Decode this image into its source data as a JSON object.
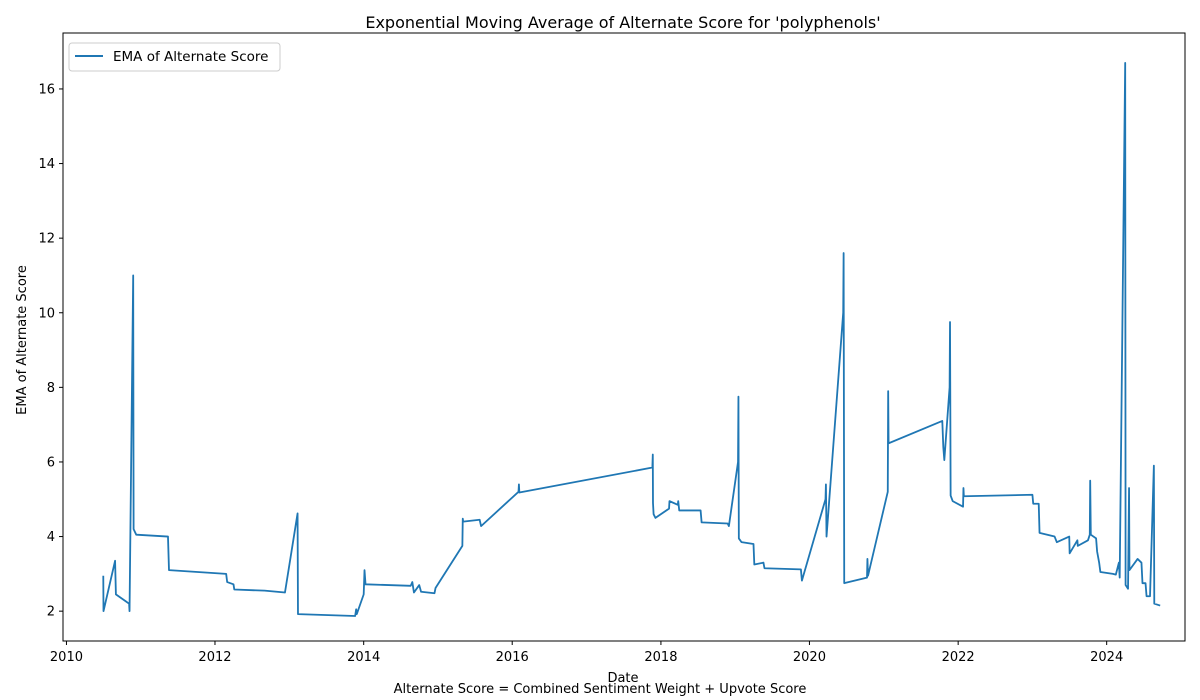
{
  "chart_data": {
    "type": "line",
    "title": "Exponential Moving Average of Alternate Score for 'polyphenols'",
    "xlabel": "Date",
    "ylabel": "EMA of Alternate Score",
    "caption": "Alternate Score = Combined Sentiment Weight + Upvote Score",
    "xlim": [
      "2009-12-15",
      "2025-01-20"
    ],
    "ylim": [
      1.2,
      17.5
    ],
    "x_ticks": [
      "2010",
      "2012",
      "2014",
      "2016",
      "2018",
      "2020",
      "2022",
      "2024"
    ],
    "y_ticks": [
      2,
      4,
      6,
      8,
      10,
      12,
      14,
      16
    ],
    "grid": false,
    "legend_position": "top-left",
    "color": "#1f77b4",
    "series": [
      {
        "name": "EMA of Alternate Score",
        "points": [
          [
            "2010-07-01",
            2.95
          ],
          [
            "2010-07-02",
            2.0
          ],
          [
            "2010-08-28",
            3.35
          ],
          [
            "2010-09-01",
            2.45
          ],
          [
            "2010-11-05",
            2.2
          ],
          [
            "2010-11-07",
            2.0
          ],
          [
            "2010-11-25",
            11.0
          ],
          [
            "2010-11-27",
            4.2
          ],
          [
            "2010-12-10",
            4.05
          ],
          [
            "2011-05-15",
            4.0
          ],
          [
            "2011-05-20",
            3.1
          ],
          [
            "2012-02-25",
            3.0
          ],
          [
            "2012-03-01",
            2.78
          ],
          [
            "2012-04-01",
            2.72
          ],
          [
            "2012-04-05",
            2.58
          ],
          [
            "2012-09-01",
            2.55
          ],
          [
            "2012-12-10",
            2.5
          ],
          [
            "2013-02-10",
            4.62
          ],
          [
            "2013-02-12",
            1.92
          ],
          [
            "2013-11-20",
            1.87
          ],
          [
            "2013-11-25",
            2.05
          ],
          [
            "2013-11-28",
            1.92
          ],
          [
            "2014-01-01",
            2.45
          ],
          [
            "2014-01-05",
            3.1
          ],
          [
            "2014-01-10",
            2.72
          ],
          [
            "2014-08-20",
            2.68
          ],
          [
            "2014-08-28",
            2.78
          ],
          [
            "2014-09-05",
            2.5
          ],
          [
            "2014-10-01",
            2.7
          ],
          [
            "2014-10-10",
            2.52
          ],
          [
            "2014-12-15",
            2.48
          ],
          [
            "2014-12-20",
            2.62
          ],
          [
            "2015-05-01",
            3.75
          ],
          [
            "2015-05-03",
            4.48
          ],
          [
            "2015-05-05",
            4.4
          ],
          [
            "2015-07-25",
            4.45
          ],
          [
            "2015-08-01",
            4.28
          ],
          [
            "2016-02-01",
            5.2
          ],
          [
            "2016-02-03",
            5.4
          ],
          [
            "2016-02-05",
            5.18
          ],
          [
            "2017-11-20",
            5.85
          ],
          [
            "2017-11-22",
            6.2
          ],
          [
            "2017-11-23",
            4.9
          ],
          [
            "2017-11-26",
            4.6
          ],
          [
            "2017-12-05",
            4.5
          ],
          [
            "2018-02-10",
            4.75
          ],
          [
            "2018-02-12",
            4.95
          ],
          [
            "2018-03-25",
            4.85
          ],
          [
            "2018-03-27",
            4.95
          ],
          [
            "2018-04-01",
            4.7
          ],
          [
            "2018-07-15",
            4.7
          ],
          [
            "2018-07-20",
            4.38
          ],
          [
            "2018-11-25",
            4.35
          ],
          [
            "2018-12-01",
            4.28
          ],
          [
            "2019-01-15",
            6.0
          ],
          [
            "2019-01-17",
            7.75
          ],
          [
            "2019-01-19",
            3.95
          ],
          [
            "2019-02-01",
            3.85
          ],
          [
            "2019-04-01",
            3.8
          ],
          [
            "2019-04-05",
            3.25
          ],
          [
            "2019-05-20",
            3.3
          ],
          [
            "2019-05-25",
            3.15
          ],
          [
            "2019-11-20",
            3.12
          ],
          [
            "2019-11-25",
            2.82
          ],
          [
            "2020-03-20",
            5.0
          ],
          [
            "2020-03-22",
            5.4
          ],
          [
            "2020-03-25",
            4.0
          ],
          [
            "2020-06-15",
            10.0
          ],
          [
            "2020-06-17",
            11.6
          ],
          [
            "2020-06-20",
            2.75
          ],
          [
            "2020-10-10",
            2.9
          ],
          [
            "2020-10-12",
            3.4
          ],
          [
            "2020-10-15",
            2.95
          ],
          [
            "2021-01-20",
            5.2
          ],
          [
            "2021-01-22",
            7.9
          ],
          [
            "2021-01-24",
            6.5
          ],
          [
            "2021-10-15",
            7.1
          ],
          [
            "2021-10-20",
            6.4
          ],
          [
            "2021-10-25",
            6.05
          ],
          [
            "2021-11-20",
            8.0
          ],
          [
            "2021-11-22",
            9.75
          ],
          [
            "2021-11-25",
            5.1
          ],
          [
            "2021-12-05",
            4.95
          ],
          [
            "2022-01-25",
            4.8
          ],
          [
            "2022-01-27",
            5.3
          ],
          [
            "2022-01-29",
            5.08
          ],
          [
            "2023-01-01",
            5.12
          ],
          [
            "2023-01-05",
            4.88
          ],
          [
            "2023-02-01",
            4.88
          ],
          [
            "2023-02-05",
            4.1
          ],
          [
            "2023-04-20",
            4.0
          ],
          [
            "2023-05-01",
            3.85
          ],
          [
            "2023-07-01",
            4.0
          ],
          [
            "2023-07-03",
            3.55
          ],
          [
            "2023-08-10",
            3.9
          ],
          [
            "2023-08-12",
            3.75
          ],
          [
            "2023-10-01",
            3.9
          ],
          [
            "2023-10-10",
            4.05
          ],
          [
            "2023-10-12",
            5.5
          ],
          [
            "2023-10-15",
            4.05
          ],
          [
            "2023-11-10",
            3.95
          ],
          [
            "2023-11-15",
            3.6
          ],
          [
            "2023-11-25",
            3.3
          ],
          [
            "2023-12-01",
            3.05
          ],
          [
            "2024-02-01",
            3.0
          ],
          [
            "2024-02-15",
            2.98
          ],
          [
            "2024-03-01",
            3.3
          ],
          [
            "2024-03-05",
            2.9
          ],
          [
            "2024-04-01",
            16.7
          ],
          [
            "2024-04-03",
            2.7
          ],
          [
            "2024-04-15",
            2.6
          ],
          [
            "2024-04-20",
            5.3
          ],
          [
            "2024-04-22",
            3.1
          ],
          [
            "2024-06-01",
            3.4
          ],
          [
            "2024-06-20",
            3.3
          ],
          [
            "2024-06-25",
            2.75
          ],
          [
            "2024-07-10",
            2.75
          ],
          [
            "2024-07-15",
            2.4
          ],
          [
            "2024-08-01",
            2.4
          ],
          [
            "2024-08-20",
            5.9
          ],
          [
            "2024-08-22",
            2.2
          ],
          [
            "2024-09-20",
            2.15
          ]
        ]
      }
    ]
  }
}
